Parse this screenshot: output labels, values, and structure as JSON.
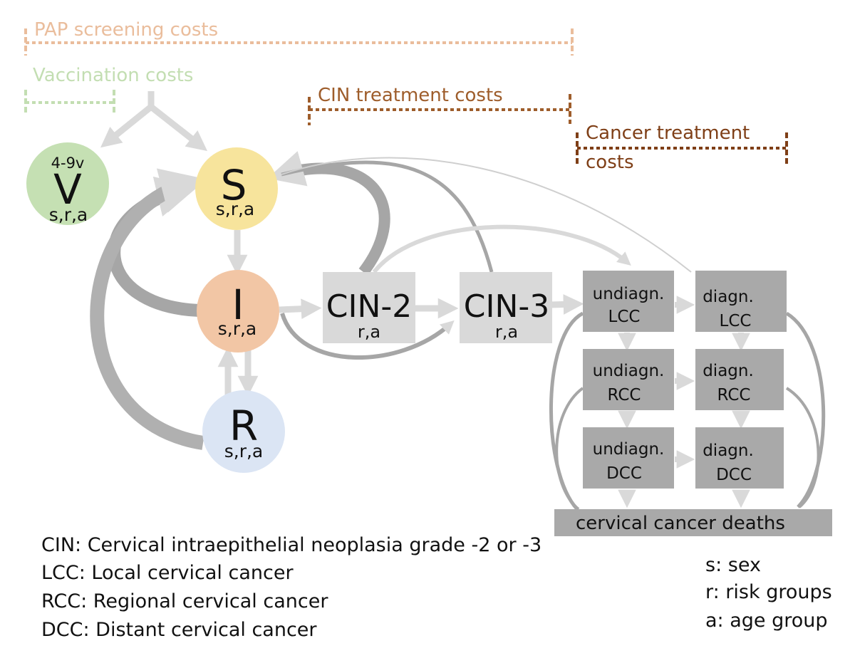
{
  "cost_labels": {
    "pap": "PAP screening costs",
    "vaccination": "Vaccination costs",
    "cin_treatment": "CIN treatment costs",
    "cancer_treatment_line1": "Cancer treatment",
    "cancer_treatment_line2": "costs"
  },
  "states": {
    "V": {
      "label": "V",
      "top": "4-9v",
      "sub": "s,r,a"
    },
    "S": {
      "label": "S",
      "sub": "s,r,a"
    },
    "I": {
      "label": "I",
      "sub": "s,r,a"
    },
    "R": {
      "label": "R",
      "sub": "s,r,a"
    }
  },
  "cin": {
    "cin2": {
      "label": "CIN-2",
      "sub": "r,a"
    },
    "cin3": {
      "label": "CIN-3",
      "sub": "r,a"
    }
  },
  "cancer": {
    "undiag_lcc": {
      "line1": "undiagn.",
      "line2": "LCC"
    },
    "diag_lcc": {
      "line1": "diagn.",
      "line2": "LCC"
    },
    "undiag_rcc": {
      "line1": "undiagn.",
      "line2": "RCC"
    },
    "diag_rcc": {
      "line1": "diagn.",
      "line2": "RCC"
    },
    "undiag_dcc": {
      "line1": "undiagn.",
      "line2": "DCC"
    },
    "diag_dcc": {
      "line1": "diagn.",
      "line2": "DCC"
    }
  },
  "deaths": "cervical cancer deaths",
  "legend_left": [
    "CIN: Cervical intraepithelial neoplasia grade -2 or -3",
    "LCC: Local cervical cancer",
    "RCC: Regional cervical cancer",
    "DCC: Distant cervical cancer"
  ],
  "legend_right": [
    "s: sex",
    "r: risk groups",
    "a: age group"
  ],
  "colors": {
    "pap": "#eabd9c",
    "vaccination": "#c3deb2",
    "cin_treatment": "#9e5d2b",
    "cancer_treatment": "#7f3f17",
    "V_fill": "#c5e0b3",
    "S_fill": "#f7e49c",
    "I_fill": "#f2c6a5",
    "R_fill": "#dbe5f4",
    "cin_box": "#d9d9d9",
    "cancer_box": "#a9a9a9",
    "arrow_light": "#d9d9d9",
    "arrow_dark": "#a6a6a6"
  }
}
